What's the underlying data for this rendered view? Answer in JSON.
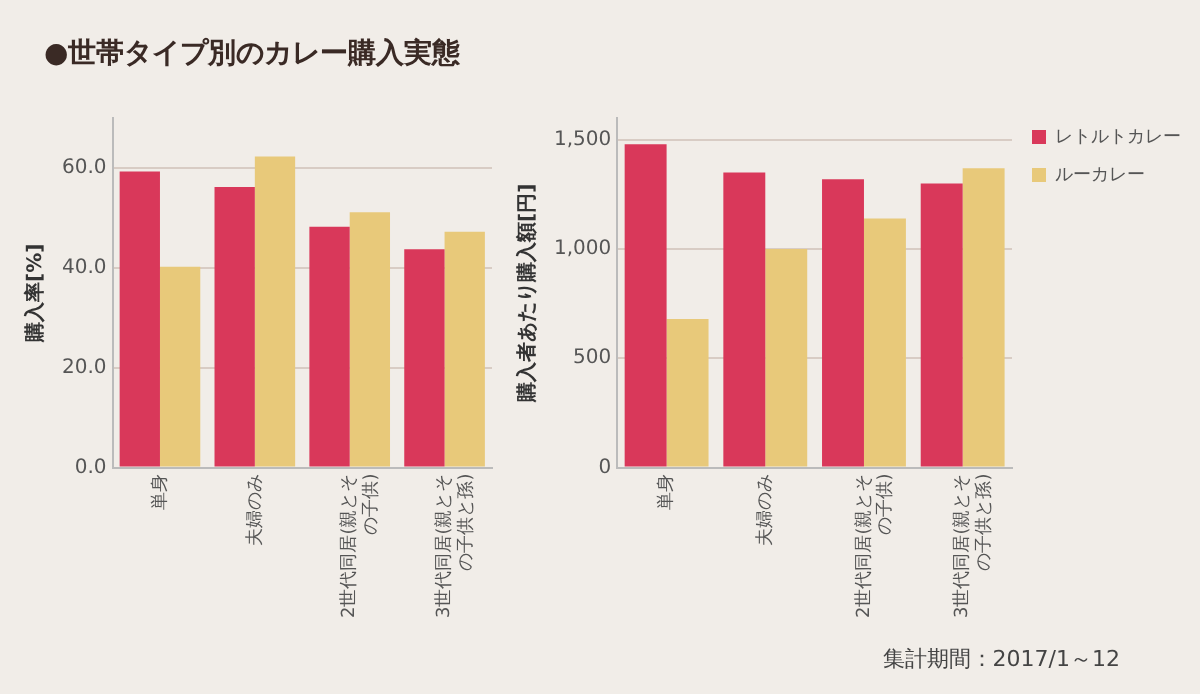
{
  "chart_data": [
    {
      "type": "bar",
      "title": "●世帯タイプ別のカレー購入実態",
      "ylabel": "購入率[%]",
      "categories": [
        "単身",
        "夫婦のみ",
        "2世代同居(親とその子供)",
        "3世代同居(親とその子供と孫)"
      ],
      "series": [
        {
          "color": "#d9385a",
          "values": [
            59.3,
            56.2,
            48.2,
            43.7
          ]
        },
        {
          "color": "#e8c97a",
          "values": [
            40.2,
            62.3,
            51.1,
            47.2
          ]
        }
      ],
      "ylim": [
        0,
        70
      ],
      "yticks": [
        {
          "value": 0,
          "label": "0.0"
        },
        {
          "value": 20,
          "label": "20.0"
        },
        {
          "value": 40,
          "label": "40.0"
        },
        {
          "value": 60,
          "label": "60.0"
        }
      ],
      "grid": "y"
    },
    {
      "type": "bar",
      "ylabel": "購入者あたり購入額[円]",
      "categories": [
        "単身",
        "夫婦のみ",
        "2世代同居(親とその子供)",
        "3世代同居(親とその子供と孫)"
      ],
      "series": [
        {
          "name": "レトルトカレー",
          "color": "#d9385a",
          "values": [
            1480,
            1350,
            1320,
            1300
          ]
        },
        {
          "name": "ルーカレー",
          "color": "#e8c97a",
          "values": [
            680,
            1000,
            1140,
            1370
          ]
        }
      ],
      "ylim": [
        0,
        1600
      ],
      "yticks": [
        0,
        500,
        {
          "value": 1000,
          "label": "1,000"
        },
        {
          "value": 1500,
          "label": "1,500"
        }
      ],
      "grid": "y",
      "legend": "top right",
      "annotations": [
        "集計期間：2017/1～12"
      ]
    }
  ]
}
